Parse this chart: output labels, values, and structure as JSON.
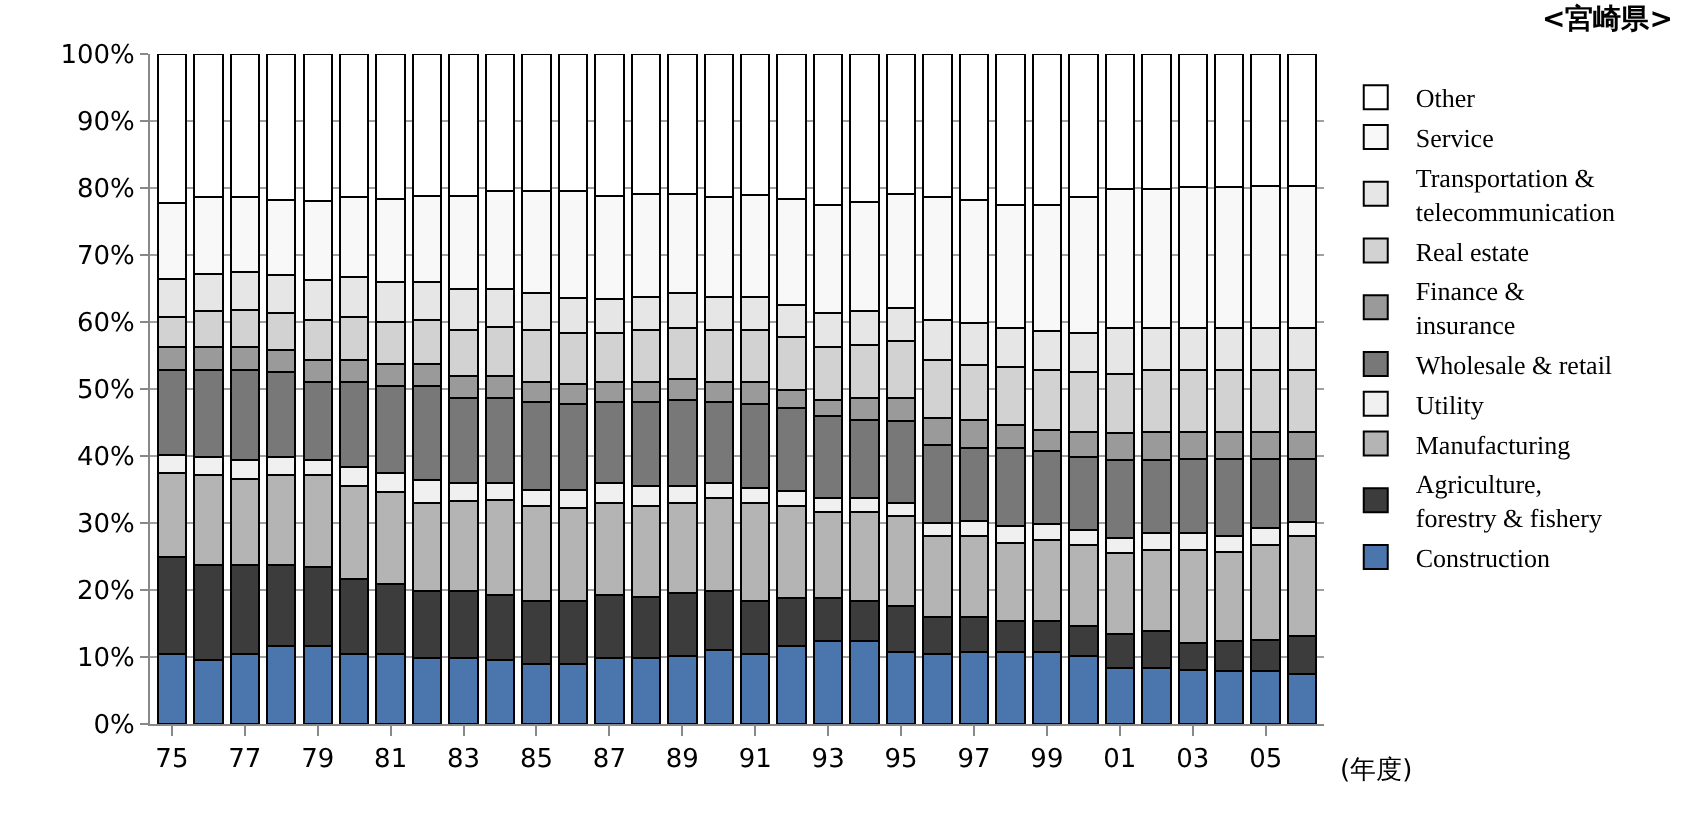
{
  "chart_data": {
    "type": "bar",
    "stacked": true,
    "annotations": [
      "<宮崎県>"
    ],
    "xlabel": "(年度)",
    "categories": [
      "75",
      null,
      "77",
      null,
      "79",
      null,
      "81",
      null,
      "83",
      null,
      "85",
      null,
      "87",
      null,
      "89",
      null,
      "91",
      null,
      "93",
      null,
      "95",
      null,
      "97",
      null,
      "99",
      null,
      "01",
      null,
      "03",
      null,
      "05",
      null
    ],
    "ylim": [
      0,
      100
    ],
    "yticks": [
      {
        "value": 0,
        "label": "0%"
      },
      {
        "value": 10,
        "label": "10%"
      },
      {
        "value": 20,
        "label": "20%"
      },
      {
        "value": 30,
        "label": "30%"
      },
      {
        "value": 40,
        "label": "40%"
      },
      {
        "value": 50,
        "label": "50%"
      },
      {
        "value": 60,
        "label": "60%"
      },
      {
        "value": 70,
        "label": "70%"
      },
      {
        "value": 80,
        "label": "80%"
      },
      {
        "value": 90,
        "label": "90%"
      },
      {
        "value": 100,
        "label": "100%"
      }
    ],
    "grid": "y",
    "legend": "right",
    "series": [
      {
        "name": "Construction",
        "color": "#4a76ad",
        "values": [
          10.4,
          9.6,
          10.4,
          11.6,
          11.6,
          10.4,
          10.4,
          9.9,
          9.9,
          9.6,
          8.9,
          8.9,
          9.9,
          9.9,
          10.1,
          11.1,
          10.4,
          11.6,
          12.4,
          12.4,
          10.8,
          10.4,
          10.8,
          10.8,
          10.8,
          10.1,
          8.4,
          8.4,
          8.1,
          7.9,
          7.9,
          7.4
        ]
      },
      {
        "name": "Agriculture,\nforestry & fishery",
        "color": "#3c3c3c",
        "values": [
          14.6,
          14.2,
          13.4,
          12.2,
          11.9,
          11.3,
          10.5,
          9.9,
          9.9,
          9.7,
          9.5,
          9.5,
          9.4,
          9.0,
          9.5,
          8.7,
          8.0,
          7.2,
          6.4,
          6.0,
          6.8,
          5.5,
          5.1,
          4.6,
          4.6,
          4.5,
          5.0,
          5.5,
          4.0,
          4.5,
          4.7,
          5.7
        ]
      },
      {
        "name": "Manufacturing",
        "color": "#b4b4b4",
        "values": [
          12.4,
          13.3,
          12.8,
          13.3,
          13.6,
          13.8,
          13.8,
          13.2,
          13.5,
          14.2,
          14.1,
          13.8,
          13.7,
          13.6,
          13.4,
          14.0,
          14.6,
          13.7,
          12.9,
          13.3,
          13.4,
          12.1,
          12.1,
          11.6,
          12.1,
          12.1,
          12.1,
          12.1,
          13.9,
          13.3,
          14.1,
          14.9
        ]
      },
      {
        "name": "Utility",
        "color": "#f0f0f0",
        "values": [
          2.7,
          2.8,
          2.8,
          2.8,
          2.3,
          2.9,
          2.7,
          3.4,
          2.6,
          2.4,
          2.5,
          2.8,
          2.9,
          3.0,
          2.5,
          2.1,
          2.3,
          2.3,
          2.0,
          2.0,
          2.0,
          2.0,
          2.3,
          2.5,
          2.3,
          2.3,
          2.2,
          2.5,
          2.5,
          2.3,
          2.5,
          2.2
        ]
      },
      {
        "name": "Wholesale & retail",
        "color": "#787878",
        "values": [
          12.7,
          12.9,
          13.4,
          12.6,
          11.7,
          12.7,
          13.1,
          14.1,
          12.8,
          12.8,
          13.1,
          12.7,
          12.2,
          12.6,
          12.9,
          12.2,
          12.4,
          12.4,
          12.2,
          11.7,
          12.2,
          11.7,
          10.9,
          11.7,
          10.9,
          10.9,
          11.7,
          10.9,
          11.1,
          11.6,
          10.4,
          9.4
        ]
      },
      {
        "name": "Finance &\ninsurance",
        "color": "#9a9a9a",
        "values": [
          3.5,
          3.5,
          3.5,
          3.3,
          3.2,
          3.2,
          3.3,
          3.3,
          3.3,
          3.3,
          3.0,
          3.1,
          3.0,
          3.0,
          3.1,
          3.0,
          3.4,
          2.7,
          2.5,
          3.2,
          3.4,
          4.0,
          4.2,
          3.4,
          3.2,
          3.7,
          4.0,
          4.2,
          4.0,
          4.0,
          4.0,
          4.0
        ]
      },
      {
        "name": "Real estate",
        "color": "#d2d2d2",
        "values": [
          4.5,
          5.3,
          5.5,
          5.5,
          6.0,
          6.5,
          6.2,
          6.5,
          6.8,
          7.3,
          7.7,
          7.5,
          7.2,
          7.7,
          7.6,
          7.7,
          7.7,
          7.9,
          7.9,
          7.9,
          8.5,
          8.6,
          8.2,
          8.7,
          8.9,
          8.9,
          8.9,
          9.2,
          9.2,
          9.2,
          9.2,
          9.2
        ]
      },
      {
        "name": "Transportation &\ntelecommunication",
        "color": "#e6e6e6",
        "values": [
          5.6,
          5.6,
          5.7,
          5.7,
          5.9,
          5.9,
          5.9,
          5.6,
          6.2,
          5.7,
          5.5,
          5.3,
          5.2,
          5.0,
          5.2,
          5.0,
          5.0,
          4.7,
          5.0,
          5.1,
          5.0,
          6.0,
          6.2,
          5.8,
          5.8,
          5.8,
          6.8,
          6.3,
          6.3,
          6.3,
          6.3,
          6.3
        ]
      },
      {
        "name": "Service",
        "color": "#f8f8f8",
        "values": [
          11.3,
          11.4,
          11.1,
          11.2,
          11.8,
          11.9,
          12.5,
          12.9,
          13.8,
          14.6,
          15.3,
          16.0,
          15.3,
          15.3,
          14.8,
          14.8,
          15.1,
          15.9,
          16.2,
          16.3,
          17.0,
          18.3,
          18.4,
          18.4,
          18.9,
          20.3,
          20.7,
          20.7,
          21.0,
          21.0,
          21.2,
          21.2
        ]
      },
      {
        "name": "Other",
        "color": "#ffffff",
        "values": [
          22.3,
          21.4,
          21.4,
          21.8,
          22.0,
          21.4,
          21.6,
          21.2,
          21.2,
          20.4,
          20.4,
          20.4,
          21.2,
          20.9,
          20.9,
          21.4,
          21.1,
          21.6,
          22.5,
          22.1,
          20.9,
          21.4,
          21.8,
          22.5,
          22.5,
          21.4,
          20.2,
          20.2,
          19.9,
          19.9,
          19.7,
          19.7
        ]
      }
    ]
  }
}
